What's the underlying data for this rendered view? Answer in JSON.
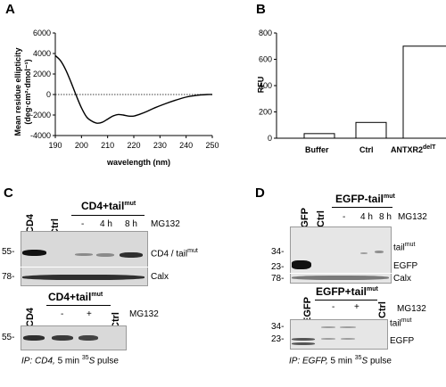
{
  "panels": {
    "A": {
      "label": "A",
      "ylabel_line1": "Mean residue ellipticity",
      "ylabel_line2": "(deg·cm²·dmol⁻¹)",
      "xlabel": "wavelength (nm)",
      "yticks": [
        "6000",
        "4000",
        "2000",
        "0",
        "-2000",
        "-4000"
      ],
      "xticks": [
        "190",
        "200",
        "210",
        "220",
        "230",
        "240",
        "250"
      ]
    },
    "B": {
      "label": "B",
      "ylabel": "RFU",
      "yticks": [
        "800",
        "600",
        "400",
        "200",
        "0"
      ],
      "categories": [
        "Buffer",
        "Ctrl",
        "ANTXR2"
      ],
      "last_sup": "delT"
    },
    "C": {
      "label": "C",
      "top": {
        "lanes": [
          "CD4",
          "Ctrl"
        ],
        "group_label": "CD4+tail",
        "group_sup": "mut",
        "treatments": [
          "-",
          "4 h",
          "8 h"
        ],
        "drug": "MG132",
        "mw": [
          "55-",
          "78-"
        ],
        "bands": [
          "CD4 / tail",
          "Calx"
        ],
        "band_sup": "mut"
      },
      "bottom": {
        "lanes": [
          "CD4",
          "Ctrl"
        ],
        "group_label": "CD4+tail",
        "group_sup": "mut",
        "treatments": [
          "-",
          "+"
        ],
        "drug": "MG132",
        "mw": [
          "55-"
        ],
        "caption_ip": "IP: CD4,",
        "caption_rest": " 5 min ",
        "caption_iso": "35",
        "caption_s": "S",
        "caption_end": " pulse"
      }
    },
    "D": {
      "label": "D",
      "top": {
        "lanes": [
          "EGFP",
          "Ctrl"
        ],
        "group_label": "EGFP-tail",
        "group_sup": "mut",
        "treatments": [
          "-",
          "4 h",
          "8 h"
        ],
        "drug": "MG132",
        "mw": [
          "34-",
          "23-",
          "78-"
        ],
        "bands": [
          "tail",
          "EGFP",
          "Calx"
        ],
        "band_sup": "mut"
      },
      "bottom": {
        "lanes": [
          "EGFP",
          "Ctrl"
        ],
        "group_label": "EGFP+tail",
        "group_sup": "mut",
        "treatments": [
          "-",
          "+"
        ],
        "drug": "MG132",
        "mw": [
          "34-",
          "23-"
        ],
        "bands": [
          "tail",
          "EGFP"
        ],
        "band_sup": "mut",
        "caption_ip": "IP: EGFP,",
        "caption_rest": " 5 min ",
        "caption_iso": "35",
        "caption_s": "S",
        "caption_end": " pulse"
      }
    }
  },
  "chart_data": [
    {
      "type": "line",
      "panel": "A",
      "xlabel": "wavelength (nm)",
      "ylabel": "Mean residue ellipticity (deg·cm²·dmol⁻¹)",
      "xlim": [
        190,
        250
      ],
      "ylim": [
        -4000,
        6000
      ],
      "zero_reference_line": "dotted",
      "x": [
        190,
        192,
        194,
        196,
        198,
        200,
        202,
        204,
        206,
        208,
        210,
        212,
        214,
        216,
        218,
        220,
        222,
        225,
        228,
        232,
        236,
        240,
        244,
        248,
        250
      ],
      "y": [
        3800,
        3300,
        2400,
        1200,
        -100,
        -1300,
        -2200,
        -2600,
        -2800,
        -2700,
        -2400,
        -2100,
        -1950,
        -2000,
        -2100,
        -2100,
        -1950,
        -1650,
        -1300,
        -900,
        -550,
        -250,
        -80,
        0,
        0
      ]
    },
    {
      "type": "bar",
      "panel": "B",
      "ylabel": "RFU",
      "ylim": [
        0,
        800
      ],
      "categories": [
        "Buffer",
        "Ctrl",
        "ANTXR2delT"
      ],
      "values": [
        35,
        120,
        700
      ]
    }
  ]
}
